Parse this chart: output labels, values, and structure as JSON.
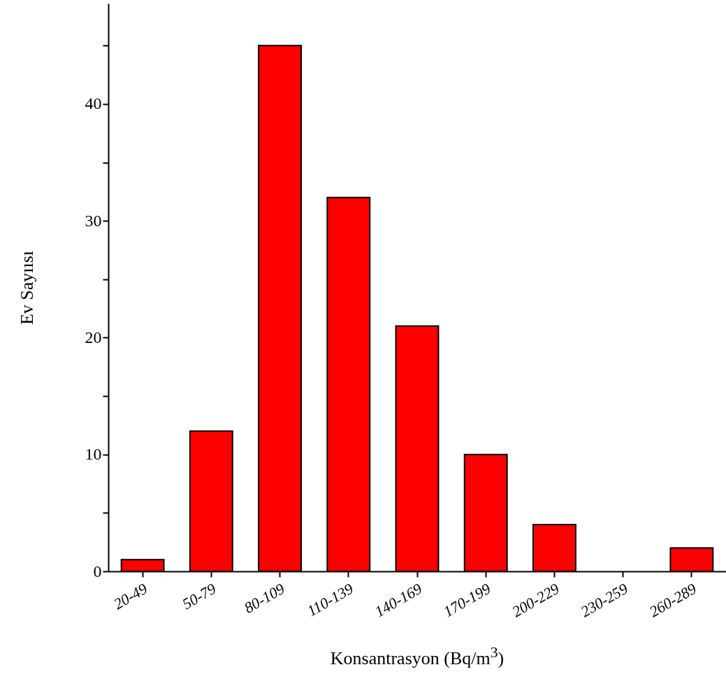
{
  "chart_data": {
    "type": "bar",
    "xlabel": "Konsantrasyon (Bq/m$^{3}$)",
    "ylabel": "Ev Sayıısı",
    "categories": [
      "20-49",
      "50-79",
      "80-109",
      "110-139",
      "140-169",
      "170-199",
      "200-229",
      "230-259",
      "260-289"
    ],
    "values": [
      1,
      12,
      45,
      32,
      21,
      10,
      4,
      0,
      2
    ],
    "color": "#ff0000",
    "ylim": [
      0,
      48.6
    ],
    "yticks": [
      0,
      {
        "value": 5,
        "label": null
      },
      10,
      {
        "value": 15,
        "label": null
      },
      20,
      {
        "value": 25,
        "label": null
      },
      30,
      {
        "value": 35,
        "label": null
      },
      40,
      {
        "value": 45,
        "label": null
      }
    ],
    "grid": false
  }
}
